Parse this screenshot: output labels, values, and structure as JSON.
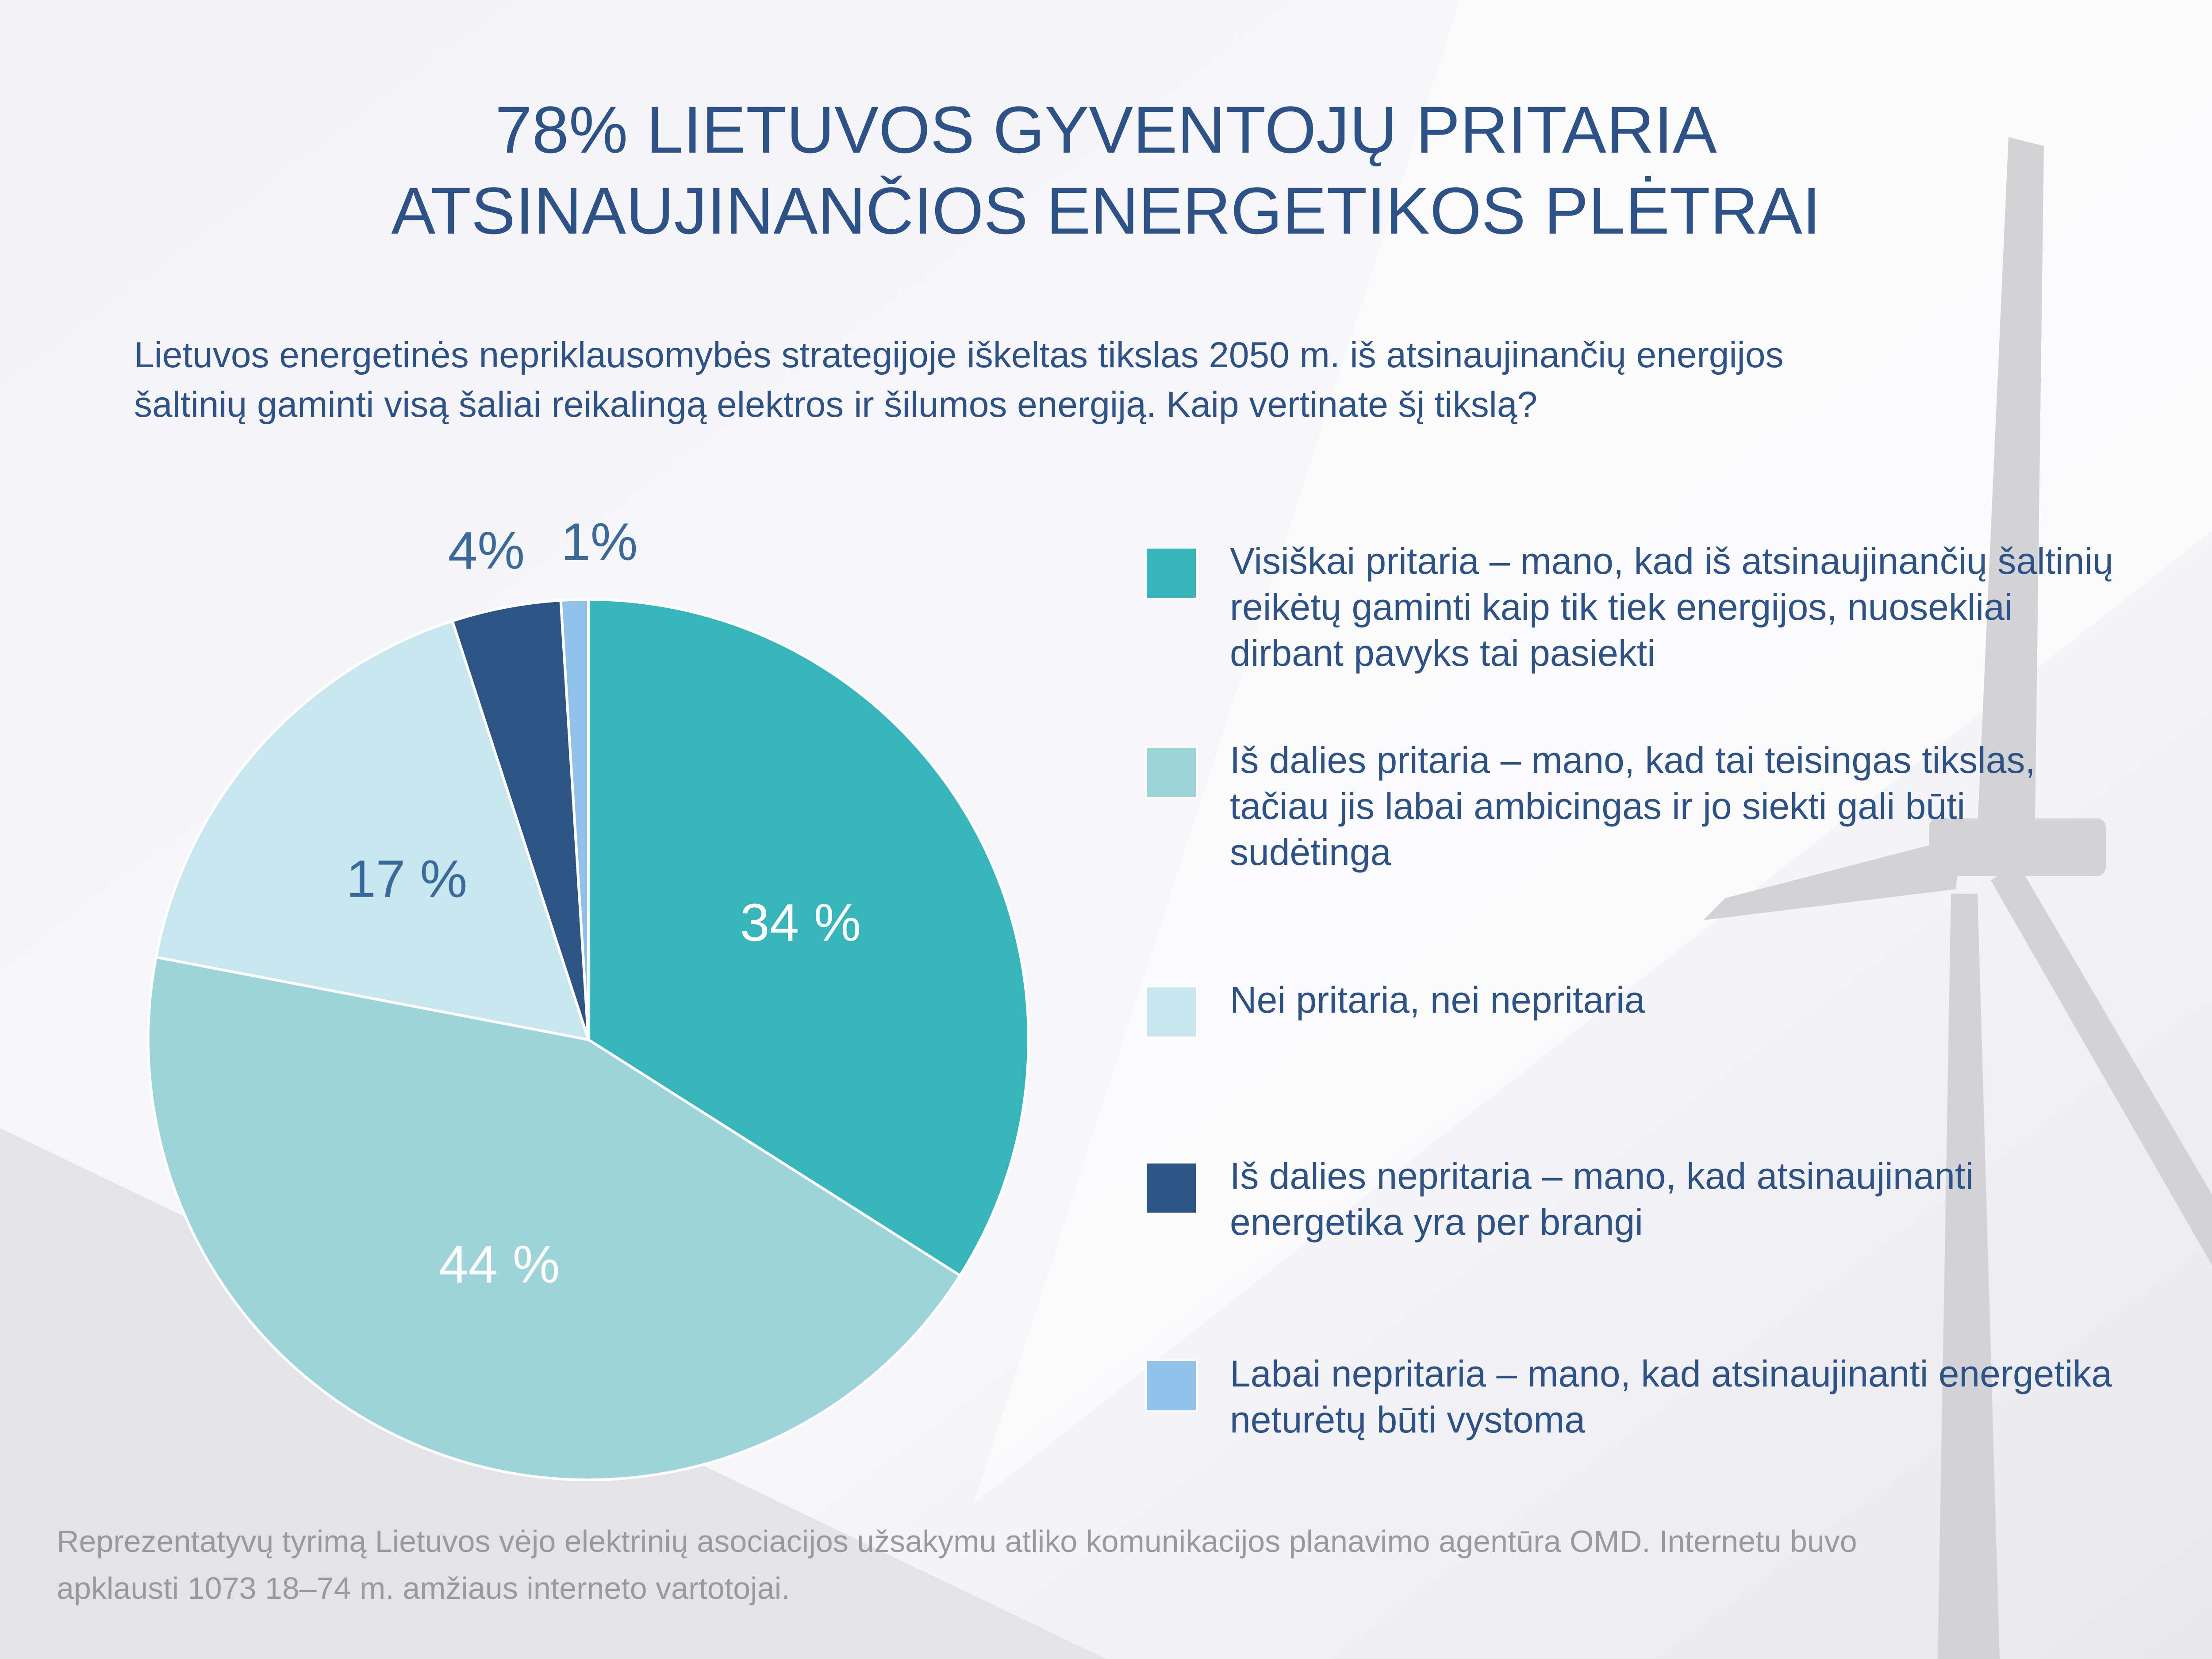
{
  "chart_data": {
    "type": "pie",
    "title": [
      "78% LIETUVOS GYVENTOJŲ PRITARIA",
      "ATSINAUJINANČIOS ENERGETIKOS PLĖTRAI"
    ],
    "subtitle": [
      "Lietuvos energetinės nepriklausomybės strategijoje iškeltas tikslas 2050 m. iš atsinaujinančių energijos",
      "šaltinių gaminti visą šaliai reikalingą elektros ir šilumos energiją. Kaip vertinate šį tikslą?"
    ],
    "categories": [
      "Visiškai pritaria – mano, kad iš atsinaujinančių šaltinių reikėtų gaminti kaip tik tiek energijos, nuosekliai dirbant pavyks tai pasiekti",
      "Iš dalies pritaria – mano, kad tai teisingas tikslas, tačiau jis labai ambicingas ir jo siekti gali būti sudėtinga",
      "Nei pritaria, nei nepritaria",
      "Iš dalies nepritaria – mano, kad atsinaujinanti energetika yra per brangi",
      "Labai nepritaria – mano, kad atsinaujinanti energetika neturėtų būti vystoma"
    ],
    "values": [
      34,
      44,
      17,
      4,
      1
    ],
    "value_labels": [
      "34 %",
      "44 %",
      "17 %",
      "4%",
      "1%"
    ],
    "colors": [
      "#36b5bb",
      "#9dd4d9",
      "#c8e6ee",
      "#2c5484",
      "#90c1ea"
    ],
    "value_label_colors": [
      "#ffffff",
      "#ffffff",
      "#3a6a9c",
      "#3a6a9c",
      "#3a6a9c"
    ],
    "footnote": [
      "Reprezentatyvų tyrimą Lietuvos vėjo elektrinių asociacijos užsakymu atliko komunikacijos planavimo agentūra OMD. Internetu buvo",
      "apklausti 1073 18–74 m. amžiaus interneto vartotojai."
    ]
  }
}
